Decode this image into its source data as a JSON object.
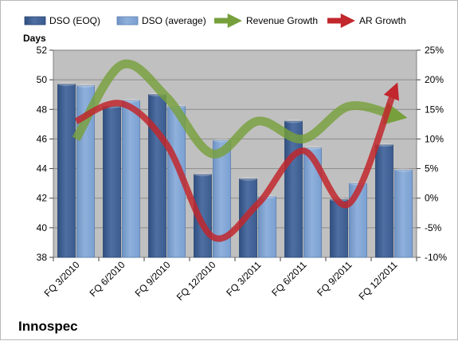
{
  "company": "Innospec",
  "colors": {
    "dso_eoq": "#4f6fa3",
    "dso_avg": "#8fb0db",
    "revenue_growth": "#77a03c",
    "ar_growth": "#c1272d",
    "plot_bg": "#c0c0c0"
  },
  "chart_data": {
    "type": "bar",
    "title": "",
    "categories": [
      "FQ 3/2010",
      "FQ 6/2010",
      "FQ 9/2010",
      "FQ 12/2010",
      "FQ 3/2011",
      "FQ 6/2011",
      "FQ 9/2011",
      "FQ 12/2011"
    ],
    "ylabel": "Days",
    "ylim": [
      38,
      52
    ],
    "yticks": [
      38,
      40,
      42,
      44,
      46,
      48,
      50,
      52
    ],
    "y2lim": [
      -10,
      25
    ],
    "y2ticks": [
      "-10%",
      "-5%",
      "0%",
      "5%",
      "10%",
      "15%",
      "20%",
      "25%"
    ],
    "grid": true,
    "legend_position": "top",
    "series": [
      {
        "name": "DSO (EOQ)",
        "type": "bar",
        "axis": "left",
        "values": [
          49.7,
          48.2,
          49.0,
          43.6,
          43.3,
          47.2,
          41.9,
          45.6
        ]
      },
      {
        "name": "DSO (average)",
        "type": "bar",
        "axis": "left",
        "values": [
          49.6,
          48.6,
          48.2,
          45.9,
          42.1,
          45.4,
          43.0,
          43.9
        ]
      },
      {
        "name": "Revenue Growth",
        "type": "line",
        "axis": "right",
        "values": [
          10.0,
          22.5,
          17.0,
          7.5,
          13.0,
          10.0,
          15.5,
          14.0
        ]
      },
      {
        "name": "AR Growth",
        "type": "line",
        "axis": "right",
        "values": [
          13.0,
          16.0,
          9.0,
          -6.5,
          -1.0,
          8.0,
          -1.0,
          18.0
        ]
      }
    ]
  }
}
